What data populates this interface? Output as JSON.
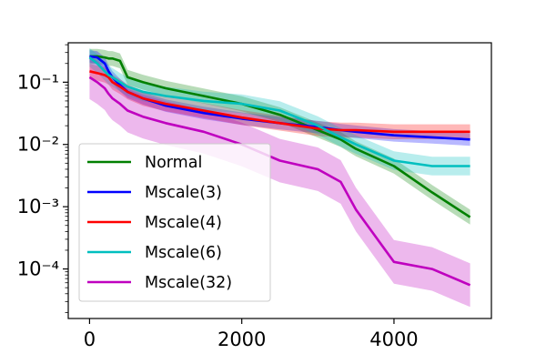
{
  "chart_data": {
    "type": "line",
    "title": "",
    "xlabel": "",
    "ylabel": "",
    "xlim": [
      -280,
      5280
    ],
    "ylim": [
      1.6e-05,
      0.43
    ],
    "yscale": "log",
    "grid": false,
    "legend_position": "lower-left",
    "x_ticks": [
      0,
      2000,
      4000
    ],
    "x_tick_labels": [
      "0",
      "2000",
      "4000"
    ],
    "y_ticks": [
      0.1,
      0.01,
      0.001,
      0.0001
    ],
    "y_tick_labels": [
      "10⁻¹",
      "10⁻²",
      "10⁻³",
      "10⁻⁴"
    ],
    "x": [
      0,
      100,
      200,
      250,
      300,
      400,
      500,
      700,
      1000,
      1500,
      2000,
      2500,
      3000,
      3300,
      3500,
      4000,
      4500,
      5000
    ],
    "series": [
      {
        "name": "Normal",
        "color": "#008000",
        "values": [
          0.26,
          0.26,
          0.25,
          0.24,
          0.24,
          0.22,
          0.12,
          0.1,
          0.08,
          0.06,
          0.045,
          0.03,
          0.017,
          0.012,
          0.0085,
          0.0045,
          0.0017,
          0.00068
        ],
        "band": 0.12
      },
      {
        "name": "Mscale(3)",
        "color": "#0000ff",
        "values": [
          0.26,
          0.25,
          0.2,
          0.15,
          0.12,
          0.09,
          0.07,
          0.055,
          0.042,
          0.032,
          0.026,
          0.022,
          0.019,
          0.017,
          0.016,
          0.014,
          0.013,
          0.012
        ],
        "band": 0.1
      },
      {
        "name": "Mscale(4)",
        "color": "#ff0000",
        "values": [
          0.15,
          0.14,
          0.13,
          0.12,
          0.1,
          0.085,
          0.07,
          0.055,
          0.045,
          0.035,
          0.027,
          0.022,
          0.018,
          0.017,
          0.017,
          0.016,
          0.016,
          0.016
        ],
        "band": 0.12
      },
      {
        "name": "Mscale(6)",
        "color": "#00bfbf",
        "values": [
          0.25,
          0.2,
          0.15,
          0.13,
          0.12,
          0.1,
          0.085,
          0.07,
          0.06,
          0.05,
          0.045,
          0.035,
          0.02,
          0.013,
          0.01,
          0.0055,
          0.0045,
          0.0045
        ],
        "band": 0.15
      },
      {
        "name": "Mscale(32)",
        "color": "#bf00bf",
        "values": [
          0.12,
          0.1,
          0.08,
          0.065,
          0.055,
          0.045,
          0.035,
          0.028,
          0.022,
          0.016,
          0.01,
          0.0055,
          0.004,
          0.0025,
          0.0009,
          0.00013,
          0.0001,
          5.5e-05
        ],
        "band": 0.35
      }
    ]
  }
}
